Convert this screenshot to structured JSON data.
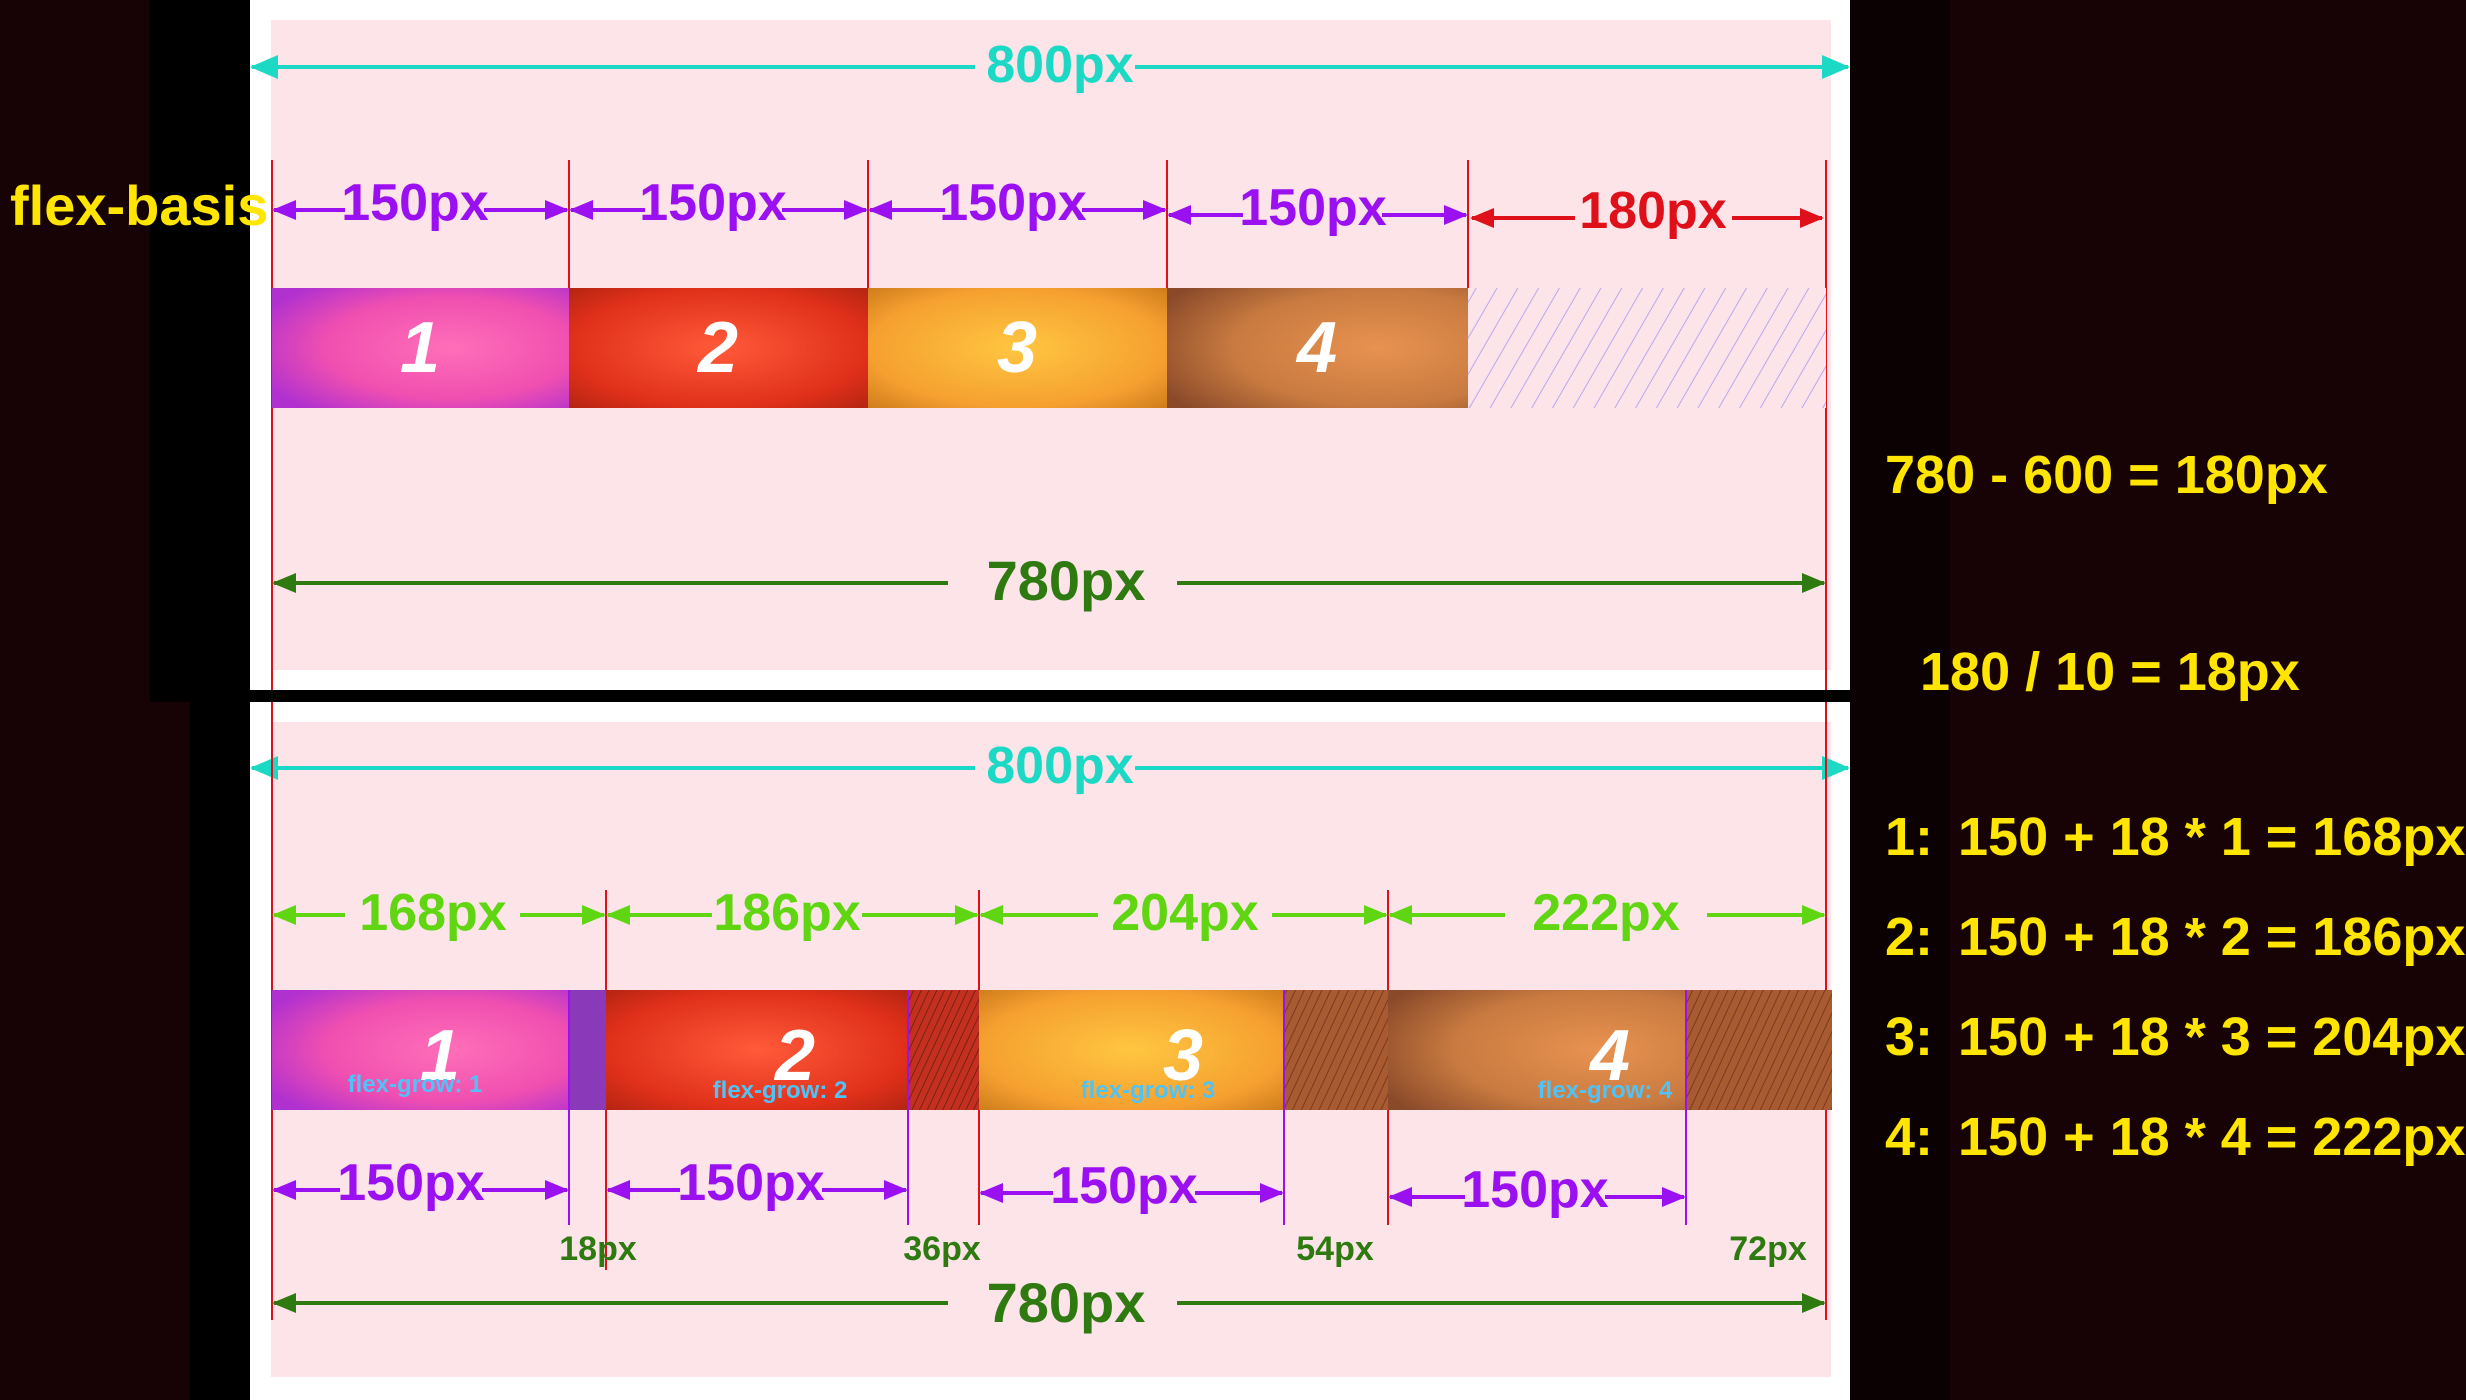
{
  "top_panel": {
    "container_width_label": "800px",
    "side_label": "flex-basis",
    "basis_labels": [
      "150px",
      "150px",
      "150px",
      "150px"
    ],
    "free_space_label": "180px",
    "items": [
      "1",
      "2",
      "3",
      "4"
    ],
    "content_width_label": "780px"
  },
  "bottom_panel": {
    "container_width_label": "800px",
    "grown_width_labels": [
      "168px",
      "186px",
      "204px",
      "222px"
    ],
    "items": [
      "1",
      "2",
      "3",
      "4"
    ],
    "grow_labels": [
      "flex-grow: 1",
      "flex-grow: 2",
      "flex-grow: 3",
      "flex-grow: 4"
    ],
    "basis_labels": [
      "150px",
      "150px",
      "150px",
      "150px"
    ],
    "extra_labels": [
      "18px",
      "36px",
      "54px",
      "72px"
    ],
    "content_width_label": "780px"
  },
  "calculations": {
    "free_space": "780 - 600 = 180px",
    "unit": "180 / 10 = 18px",
    "rows": [
      {
        "prefix": "1:",
        "formula": "150 + 18 * 1 = 168px"
      },
      {
        "prefix": "2:",
        "formula": "150 + 18 * 2 = 186px"
      },
      {
        "prefix": "3:",
        "formula": "150 + 18 * 3 = 204px"
      },
      {
        "prefix": "4:",
        "formula": "150 + 18 * 4 = 222px"
      }
    ]
  },
  "colors": {
    "cyan": "#1bd9c4",
    "purple": "#9b10f0",
    "red": "#e0101a",
    "green": "#2e7a10",
    "lime": "#5fd611",
    "yellow": "#ffe500",
    "item_text": "#ffffff",
    "grow_text": "#4fc3f7"
  }
}
